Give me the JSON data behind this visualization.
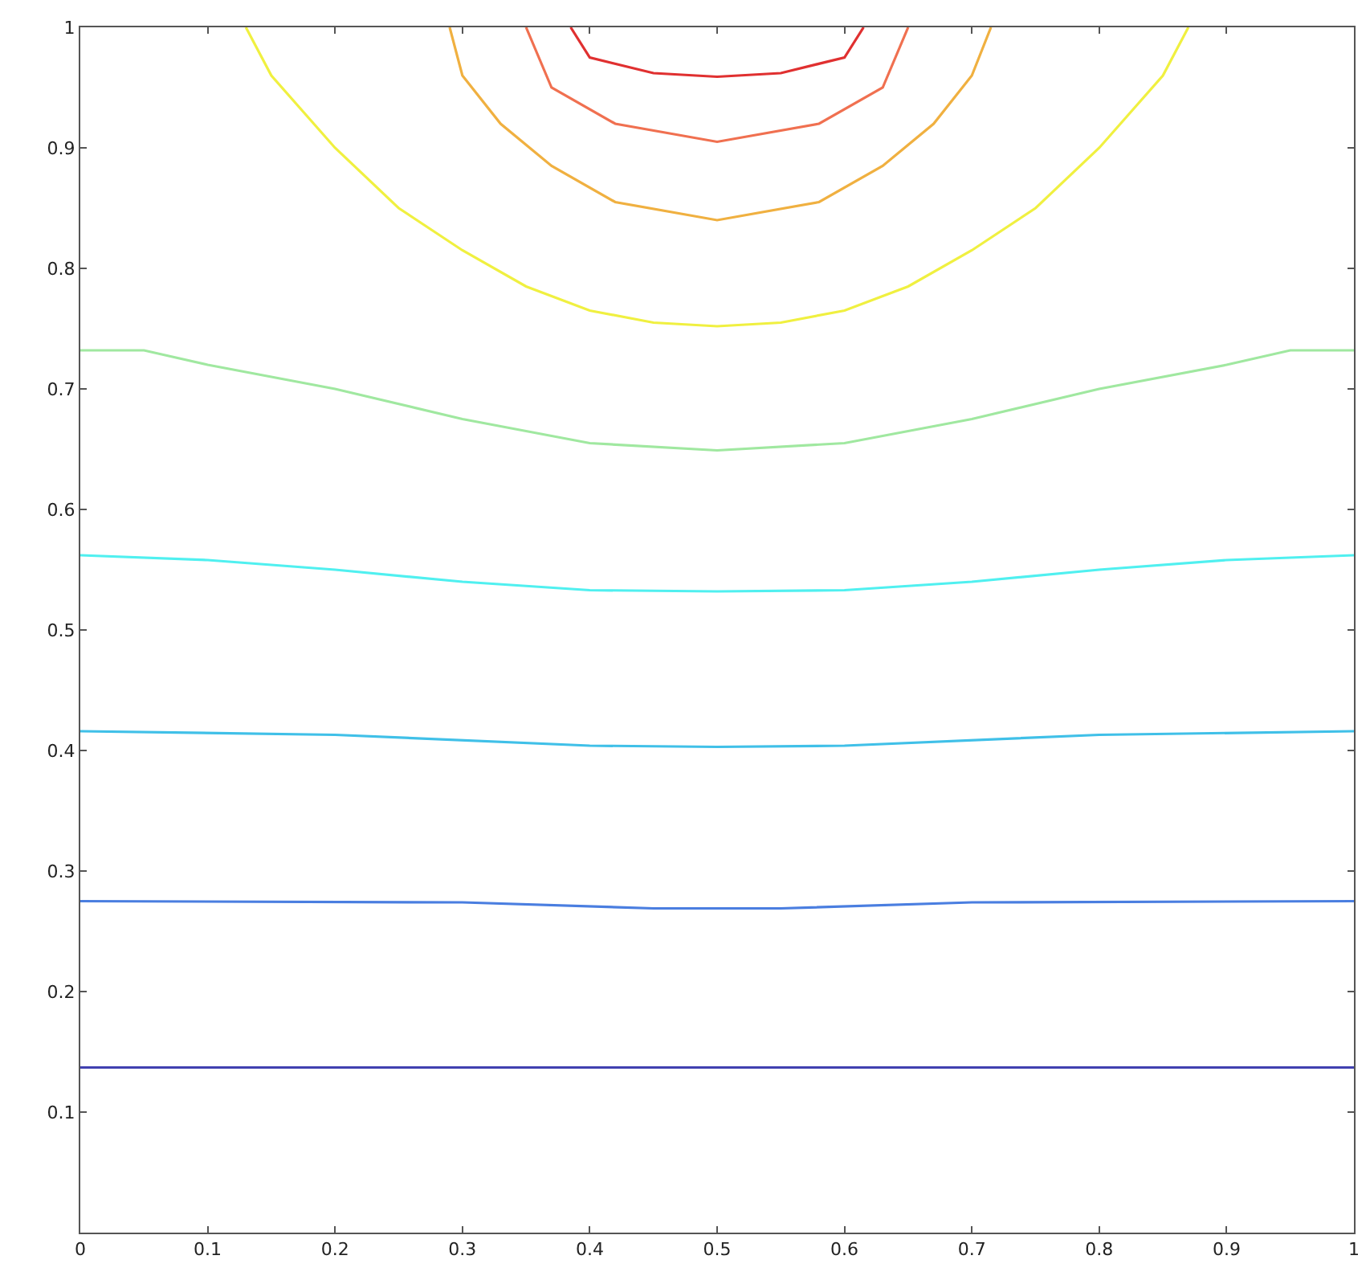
{
  "chart_data": {
    "type": "line",
    "xlim": [
      0,
      1
    ],
    "ylim": [
      0,
      1
    ],
    "xticks": [
      0,
      0.1,
      0.2,
      0.3,
      0.4,
      0.5,
      0.6,
      0.7,
      0.8,
      0.9,
      1
    ],
    "yticks": [
      0.1,
      0.2,
      0.3,
      0.4,
      0.5,
      0.6,
      0.7,
      0.8,
      0.9,
      1
    ],
    "marker": "none",
    "line_style": "solid",
    "series": [
      {
        "color": "#4040b0",
        "x": [
          0,
          1
        ],
        "values": [
          0.137,
          0.137
        ]
      },
      {
        "color": "#4a7ee0",
        "x": [
          0,
          0.3,
          0.45,
          0.55,
          0.7,
          1
        ],
        "values": [
          0.275,
          0.274,
          0.269,
          0.269,
          0.274,
          0.275
        ]
      },
      {
        "color": "#40c0e8",
        "x": [
          0,
          0.2,
          0.4,
          0.5,
          0.6,
          0.8,
          1
        ],
        "values": [
          0.416,
          0.413,
          0.404,
          0.403,
          0.404,
          0.413,
          0.416
        ]
      },
      {
        "color": "#50f0f0",
        "x": [
          0,
          0.1,
          0.2,
          0.3,
          0.4,
          0.5,
          0.6,
          0.7,
          0.8,
          0.9,
          1
        ],
        "values": [
          0.562,
          0.558,
          0.55,
          0.54,
          0.533,
          0.532,
          0.533,
          0.54,
          0.55,
          0.558,
          0.562
        ]
      },
      {
        "color": "#a0e8a0",
        "x": [
          0,
          0.05,
          0.1,
          0.2,
          0.3,
          0.4,
          0.5,
          0.6,
          0.7,
          0.8,
          0.9,
          0.95,
          1
        ],
        "values": [
          0.732,
          0.732,
          0.72,
          0.7,
          0.675,
          0.655,
          0.649,
          0.655,
          0.675,
          0.7,
          0.72,
          0.732,
          0.732
        ]
      },
      {
        "color": "#f0f040",
        "x": [
          0.13,
          0.15,
          0.2,
          0.25,
          0.3,
          0.35,
          0.4,
          0.45,
          0.5,
          0.55,
          0.6,
          0.65,
          0.7,
          0.75,
          0.8,
          0.85,
          0.87
        ],
        "values": [
          1,
          0.96,
          0.9,
          0.85,
          0.815,
          0.785,
          0.765,
          0.755,
          0.752,
          0.755,
          0.765,
          0.785,
          0.815,
          0.85,
          0.9,
          0.96,
          1
        ]
      },
      {
        "color": "#f0b040",
        "x": [
          0.29,
          0.3,
          0.33,
          0.37,
          0.42,
          0.5,
          0.58,
          0.63,
          0.67,
          0.7,
          0.715
        ],
        "values": [
          1,
          0.96,
          0.92,
          0.885,
          0.855,
          0.84,
          0.855,
          0.885,
          0.92,
          0.96,
          1
        ]
      },
      {
        "color": "#f07050",
        "x": [
          0.35,
          0.37,
          0.42,
          0.5,
          0.58,
          0.63,
          0.65
        ],
        "values": [
          1,
          0.95,
          0.92,
          0.905,
          0.92,
          0.95,
          1
        ]
      },
      {
        "color": "#e03030",
        "x": [
          0.385,
          0.4,
          0.45,
          0.5,
          0.55,
          0.6,
          0.615
        ],
        "values": [
          1,
          0.975,
          0.962,
          0.959,
          0.962,
          0.975,
          1
        ]
      }
    ]
  }
}
